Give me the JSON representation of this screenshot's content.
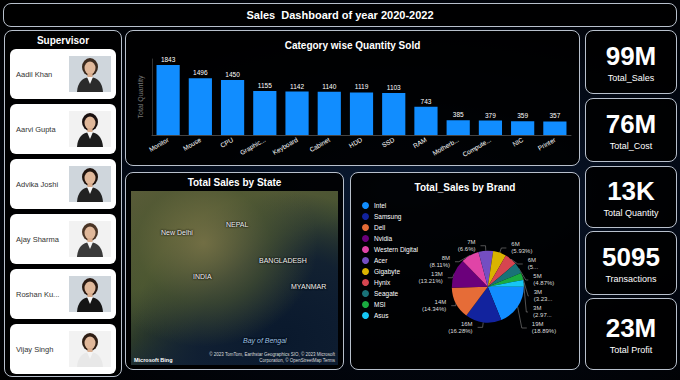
{
  "header": {
    "title": "Sales  Dashboard of year 2020-2022"
  },
  "supervisor": {
    "title": "Supervisor",
    "names": [
      "Aadil Khan",
      "Aarvi Gupta",
      "Advika Joshi",
      "Ajay Sharma",
      "Roshan Ku...",
      "Vijay Singh"
    ]
  },
  "kpis": [
    {
      "value": "99M",
      "label": "Total_Sales"
    },
    {
      "value": "76M",
      "label": "Total_Cost"
    },
    {
      "value": "13K",
      "label": "Total Quantity"
    },
    {
      "value": "5095",
      "label": "Transactions"
    },
    {
      "value": "23M",
      "label": "Total Profit"
    }
  ],
  "map": {
    "title": "Total Sales by State",
    "labels": [
      "New Delhi",
      "NEPAL",
      "INDIA",
      "BANGLADESH",
      "MYANMAR",
      "Bay of Bengal"
    ],
    "logo": "Microsoft Bing",
    "attribution": "© 2023 TomTom, Earthstar Geographics SIO, © 2023 Microsoft Corporation, © OpenStreetMap Terms"
  },
  "chart_data": [
    {
      "type": "bar",
      "title": "Category wise Quantity Sold",
      "ylabel": "Total Quantity",
      "categories": [
        "Monitor",
        "Mouse",
        "CPU",
        "Graphic...",
        "Keyboard",
        "Cabinet",
        "HDD",
        "SSD",
        "RAM",
        "Motherb...",
        "Compute...",
        "NIC",
        "Printer"
      ],
      "values": [
        1843,
        1496,
        1450,
        1155,
        1142,
        1140,
        1119,
        1103,
        743,
        385,
        379,
        359,
        357
      ],
      "color": "#118DFF",
      "ylim": [
        0,
        2000
      ],
      "grid": false,
      "data_labels": true,
      "tick_labels": "x"
    },
    {
      "type": "pie",
      "title": "Total_Sales by Brand",
      "categories": [
        "Intel",
        "Samsung",
        "Dell",
        "Nvidia",
        "Western Digital",
        "Acer",
        "Gigabyte",
        "Hynix",
        "Seagate",
        "MSI",
        "Asus"
      ],
      "values": [
        18.89,
        16.28,
        14.34,
        13.21,
        8.11,
        6.6,
        5.93,
        5.6,
        4.87,
        3.23,
        2.97
      ],
      "value_labels": [
        "19M (18.89%)",
        "16M (16.28%)",
        "14M (14.34%)",
        "13M (13.21%)",
        "8M (8.11%)",
        "7M (6.6%)",
        "6M (5.93%)",
        "6M (5...",
        "5M (4.87%)",
        "3M (3.23...",
        "3M (2.97..."
      ],
      "colors": [
        "#118DFF",
        "#12239E",
        "#E66C37",
        "#6B007B",
        "#E044A7",
        "#744EC2",
        "#D9B300",
        "#D64550",
        "#197278",
        "#1AAB40",
        "#15C6F4"
      ],
      "legend": "top-left",
      "data_labels": true
    }
  ]
}
